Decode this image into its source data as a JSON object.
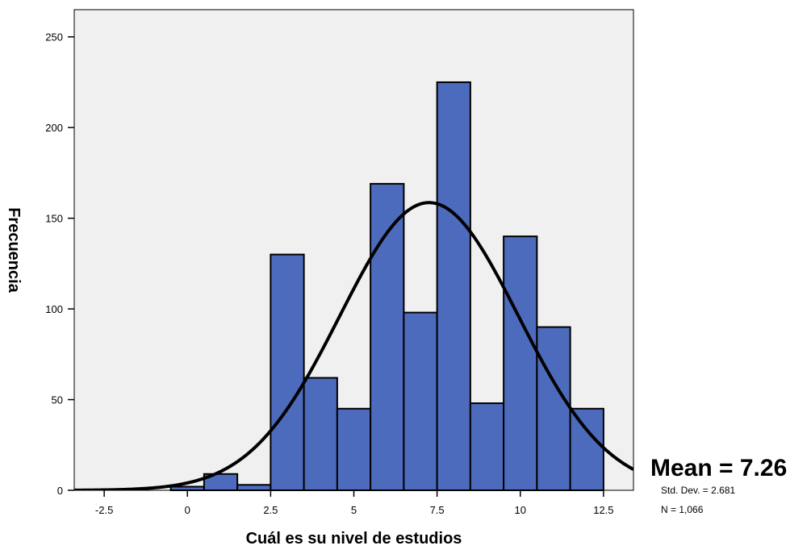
{
  "chart_data": {
    "type": "bar",
    "subtype": "histogram",
    "xlabel": "Cuál es su nivel de estudios",
    "ylabel": "Frecuencia",
    "xlim": [
      -3.4,
      13.4
    ],
    "ylim": [
      0,
      265
    ],
    "xticks": [
      -2.5,
      0,
      2.5,
      5,
      7.5,
      10,
      12.5
    ],
    "xtick_labels": [
      "-2.5",
      "0",
      "2.5",
      "5",
      "7.5",
      "10",
      "12.5"
    ],
    "yticks": [
      0,
      50,
      100,
      150,
      200,
      250
    ],
    "ytick_labels": [
      "0",
      "50",
      "100",
      "150",
      "200",
      "250"
    ],
    "bins": [
      {
        "start": -0.5,
        "end": 0.5,
        "count": 2
      },
      {
        "start": 0.5,
        "end": 1.5,
        "count": 9
      },
      {
        "start": 1.5,
        "end": 2.5,
        "count": 3
      },
      {
        "start": 2.5,
        "end": 3.5,
        "count": 130
      },
      {
        "start": 3.5,
        "end": 4.5,
        "count": 62
      },
      {
        "start": 4.5,
        "end": 5.5,
        "count": 45
      },
      {
        "start": 5.5,
        "end": 6.5,
        "count": 169
      },
      {
        "start": 6.5,
        "end": 7.5,
        "count": 98
      },
      {
        "start": 7.5,
        "end": 8.5,
        "count": 225
      },
      {
        "start": 8.5,
        "end": 9.5,
        "count": 48
      },
      {
        "start": 9.5,
        "end": 10.5,
        "count": 140
      },
      {
        "start": 10.5,
        "end": 11.5,
        "count": 90
      },
      {
        "start": 11.5,
        "end": 12.5,
        "count": 45
      }
    ],
    "normal_curve": {
      "mean": 7.26,
      "std_dev": 2.681,
      "n": 1066,
      "bin_width": 1
    },
    "stats": {
      "mean_label": "Mean = 7.26",
      "std_label": "Std. Dev. = 2.681",
      "n_label": "N = 1,066"
    },
    "colors": {
      "bar_fill": "#4d6bbd",
      "bar_stroke": "#000000",
      "plot_background": "#f0f0f0",
      "curve": "#000000"
    },
    "grid": false,
    "legend": "none"
  }
}
